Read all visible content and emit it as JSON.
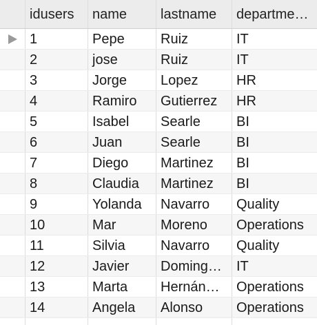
{
  "table": {
    "columns": [
      "idusers",
      "name",
      "lastname",
      "departme…"
    ],
    "rows": [
      [
        "1",
        "Pepe",
        "Ruiz",
        "IT"
      ],
      [
        "2",
        "jose",
        "Ruiz",
        "IT"
      ],
      [
        "3",
        "Jorge",
        "Lopez",
        "HR"
      ],
      [
        "4",
        "Ramiro",
        "Gutierrez",
        "HR"
      ],
      [
        "5",
        "Isabel",
        "Searle",
        "BI"
      ],
      [
        "6",
        "Juan",
        "Searle",
        "BI"
      ],
      [
        "7",
        "Diego",
        "Martinez",
        "BI"
      ],
      [
        "8",
        "Claudia",
        "Martinez",
        "BI"
      ],
      [
        "9",
        "Yolanda",
        "Navarro",
        "Quality"
      ],
      [
        "10",
        "Mar",
        "Moreno",
        "Operations"
      ],
      [
        "11",
        "Silvia",
        "Navarro",
        "Quality"
      ],
      [
        "12",
        "Javier",
        "Doming…",
        "IT"
      ],
      [
        "13",
        "Marta",
        "Hernán…",
        "Operations"
      ],
      [
        "14",
        "Angela",
        "Alonso",
        "Operations"
      ]
    ],
    "current_row_indicator": "row-pointer-icon"
  }
}
